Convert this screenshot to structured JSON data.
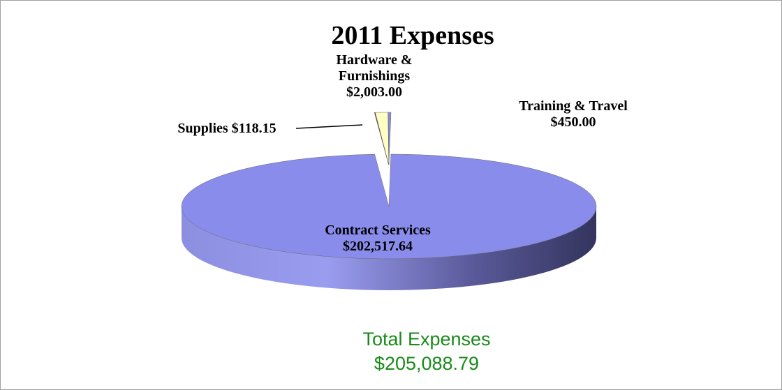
{
  "chart_data": {
    "type": "pie3d",
    "title": "2011 Expenses",
    "categories": [
      "Contract Services",
      "Supplies",
      "Hardware & Furnishings",
      "Training & Travel"
    ],
    "values": [
      202517.64,
      118.15,
      2003.0,
      450.0
    ],
    "value_labels": [
      "$202,517.64",
      "$118.15",
      "$2,003.00",
      "$450.00"
    ],
    "colors": [
      "#8a8cec",
      "#6a1838",
      "#ffffc4",
      "#8a8cd8"
    ],
    "annotations": [
      "Total Expenses",
      "$205,088.79"
    ]
  }
}
